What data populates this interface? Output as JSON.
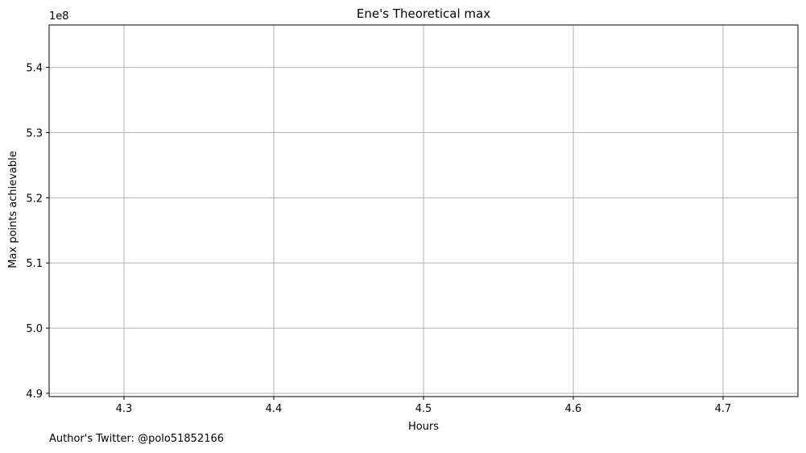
{
  "chart_data": {
    "type": "line",
    "title": "Ene's Theoretical max",
    "xlabel": "Hours",
    "ylabel": "Max points achievable",
    "y_scale_label": "1e8",
    "xlim": [
      4.25,
      4.75
    ],
    "ylim": [
      4.895,
      5.465
    ],
    "y_multiplier": 100000000,
    "x_ticks": [
      4.3,
      4.4,
      4.5,
      4.6,
      4.7
    ],
    "x_tick_labels": [
      "4.3",
      "4.4",
      "4.5",
      "4.6",
      "4.7"
    ],
    "y_ticks": [
      4.9,
      5.0,
      5.1,
      5.2,
      5.3,
      5.4
    ],
    "y_tick_labels": [
      "4.9",
      "5.0",
      "5.1",
      "5.2",
      "5.3",
      "5.4"
    ],
    "grid": true,
    "series": [
      {
        "x": [],
        "y": []
      }
    ]
  },
  "footer": {
    "author_text": "Author's Twitter: @polo51852166"
  },
  "colors": {
    "grid": "#b0b0b0",
    "axis": "#000000",
    "background": "#ffffff"
  }
}
